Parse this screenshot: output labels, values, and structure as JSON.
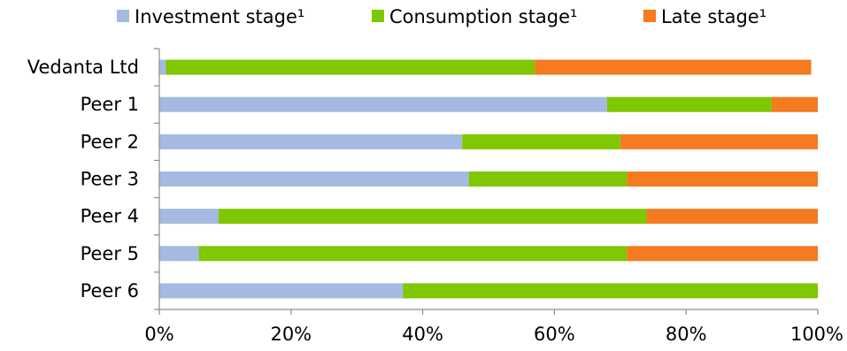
{
  "chart_data": {
    "type": "bar",
    "orientation": "horizontal",
    "stacked": true,
    "categories": [
      "Vedanta Ltd",
      "Peer 1",
      "Peer 2",
      "Peer 3",
      "Peer 4",
      "Peer 5",
      "Peer 6"
    ],
    "series": [
      {
        "name": "Investment stage¹",
        "color": "#a6b9e0",
        "values": [
          1,
          68,
          46,
          47,
          9,
          6,
          37
        ]
      },
      {
        "name": "Consumption stage¹",
        "color": "#7fc700",
        "values": [
          56,
          25,
          24,
          24,
          65,
          65,
          63
        ]
      },
      {
        "name": "Late stage¹",
        "color": "#f47b20",
        "values": [
          42,
          7,
          30,
          29,
          26,
          29,
          0
        ]
      }
    ],
    "xlim": [
      0,
      100
    ],
    "xticks": [
      "0%",
      "20%",
      "40%",
      "60%",
      "80%",
      "100%"
    ],
    "legend_position": "top",
    "grid": false
  }
}
